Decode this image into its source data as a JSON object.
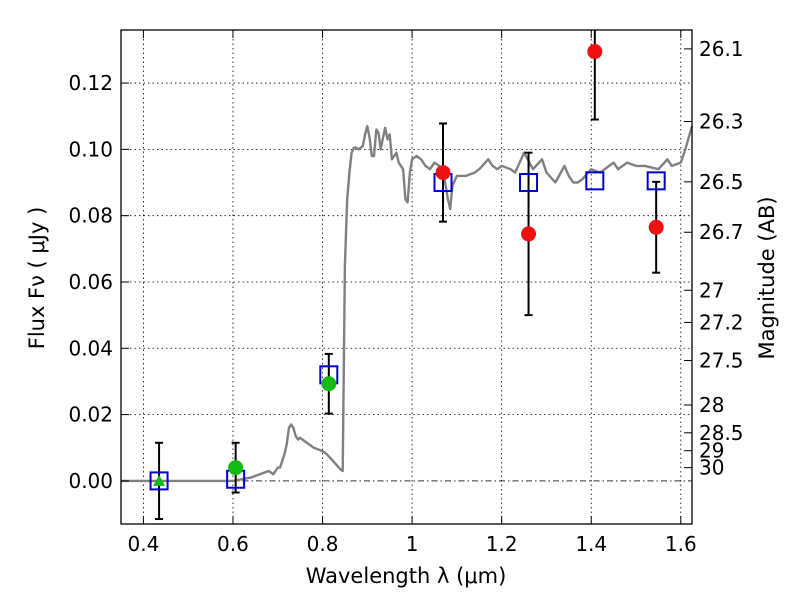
{
  "chart_data": {
    "type": "scatter",
    "title": "",
    "xlabel": "Wavelength  λ (μm)",
    "ylabel": "Flux  Fν  ( μJy )",
    "ylabel_right": "Magnitude (AB)",
    "xlim": [
      0.35,
      1.625
    ],
    "ylim": [
      -0.013,
      0.136
    ],
    "grid": true,
    "x_ticks": [
      {
        "v": 0.4,
        "label": "0.4"
      },
      {
        "v": 0.6,
        "label": "0.6"
      },
      {
        "v": 0.8,
        "label": "0.8"
      },
      {
        "v": 1.0,
        "label": "1"
      },
      {
        "v": 1.2,
        "label": "1.2"
      },
      {
        "v": 1.4,
        "label": "1.4"
      },
      {
        "v": 1.6,
        "label": "1.6"
      }
    ],
    "y_ticks": [
      {
        "v": 0.0,
        "label": "0.00"
      },
      {
        "v": 0.02,
        "label": "0.02"
      },
      {
        "v": 0.04,
        "label": "0.04"
      },
      {
        "v": 0.06,
        "label": "0.06"
      },
      {
        "v": 0.08,
        "label": "0.08"
      },
      {
        "v": 0.1,
        "label": "0.10"
      },
      {
        "v": 0.12,
        "label": "0.12"
      }
    ],
    "right_ticks": [
      {
        "flux": 0.1303,
        "label": "26.1"
      },
      {
        "flux": 0.1084,
        "label": "26.3"
      },
      {
        "flux": 0.0902,
        "label": "26.5"
      },
      {
        "flux": 0.075,
        "label": "26.7"
      },
      {
        "flux": 0.0575,
        "label": "27"
      },
      {
        "flux": 0.0478,
        "label": "27.2"
      },
      {
        "flux": 0.0363,
        "label": "27.5"
      },
      {
        "flux": 0.0229,
        "label": "28"
      },
      {
        "flux": 0.0145,
        "label": "28.5"
      },
      {
        "flux": 0.0091,
        "label": "29"
      },
      {
        "flux": 0.004,
        "label": "30"
      }
    ],
    "series": [
      {
        "kind": "model_sed",
        "color": "#808080",
        "x": [
          0.35,
          0.6,
          0.62,
          0.64,
          0.66,
          0.67,
          0.68,
          0.69,
          0.7,
          0.705,
          0.71,
          0.715,
          0.72,
          0.725,
          0.73,
          0.735,
          0.74,
          0.745,
          0.75,
          0.76,
          0.77,
          0.78,
          0.79,
          0.8,
          0.81,
          0.82,
          0.83,
          0.84,
          0.845,
          0.85,
          0.855,
          0.86,
          0.865,
          0.87,
          0.875,
          0.88,
          0.89,
          0.895,
          0.9,
          0.905,
          0.91,
          0.915,
          0.92,
          0.925,
          0.93,
          0.935,
          0.94,
          0.945,
          0.95,
          0.955,
          0.96,
          0.965,
          0.97,
          0.98,
          0.985,
          0.99,
          0.995,
          1.0,
          1.01,
          1.02,
          1.03,
          1.04,
          1.05,
          1.06,
          1.07,
          1.075,
          1.08,
          1.085,
          1.09,
          1.1,
          1.12,
          1.14,
          1.15,
          1.17,
          1.18,
          1.19,
          1.2,
          1.22,
          1.23,
          1.25,
          1.27,
          1.29,
          1.3,
          1.32,
          1.34,
          1.35,
          1.36,
          1.37,
          1.38,
          1.4,
          1.42,
          1.45,
          1.46,
          1.48,
          1.5,
          1.52,
          1.55,
          1.57,
          1.58,
          1.6,
          1.61,
          1.625
        ],
        "y": [
          0.0,
          0.0,
          0.0005,
          0.001,
          0.002,
          0.0025,
          0.003,
          0.002,
          0.004,
          0.004,
          0.006,
          0.008,
          0.011,
          0.016,
          0.017,
          0.016,
          0.0135,
          0.0125,
          0.013,
          0.012,
          0.011,
          0.01,
          0.0095,
          0.009,
          0.008,
          0.0065,
          0.005,
          0.0035,
          0.003,
          0.065,
          0.085,
          0.093,
          0.099,
          0.1005,
          0.1005,
          0.1,
          0.101,
          0.1045,
          0.107,
          0.1035,
          0.098,
          0.098,
          0.106,
          0.105,
          0.1,
          0.1035,
          0.1065,
          0.103,
          0.1045,
          0.097,
          0.098,
          0.099,
          0.096,
          0.094,
          0.085,
          0.084,
          0.093,
          0.097,
          0.098,
          0.097,
          0.095,
          0.094,
          0.096,
          0.095,
          0.093,
          0.089,
          0.085,
          0.082,
          0.089,
          0.092,
          0.092,
          0.093,
          0.094,
          0.097,
          0.095,
          0.094,
          0.095,
          0.094,
          0.093,
          0.099,
          0.094,
          0.097,
          0.093,
          0.09,
          0.095,
          0.092,
          0.09,
          0.09,
          0.091,
          0.094,
          0.093,
          0.096,
          0.094,
          0.096,
          0.095,
          0.095,
          0.094,
          0.097,
          0.095,
          0.096,
          0.1,
          0.107
        ]
      },
      {
        "kind": "model_photometry",
        "marker": "open-square",
        "color": "#0000cc",
        "x": [
          0.435,
          0.606,
          0.814,
          1.069,
          1.26,
          1.408,
          1.545
        ],
        "y": [
          0.0,
          0.0005,
          0.032,
          0.09,
          0.09,
          0.0905,
          0.0905
        ]
      },
      {
        "kind": "observed_detections",
        "marker": "circle",
        "color": "#11bb11",
        "x": [
          0.606,
          0.814
        ],
        "y": [
          0.004,
          0.0293
        ],
        "err": [
          0.0075,
          0.009
        ]
      },
      {
        "kind": "observed_upper_limit",
        "marker": "triangle-up",
        "color": "#11bb11",
        "x": [
          0.435
        ],
        "y": [
          0.0
        ],
        "err": [
          0.0115
        ]
      },
      {
        "kind": "observed_ir",
        "marker": "circle",
        "color": "#ee1111",
        "x": [
          1.069,
          1.26,
          1.408,
          1.545
        ],
        "y": [
          0.093,
          0.0745,
          0.1295,
          0.0765
        ],
        "err": [
          0.0148,
          0.0245,
          0.0205,
          0.0137
        ]
      }
    ]
  }
}
